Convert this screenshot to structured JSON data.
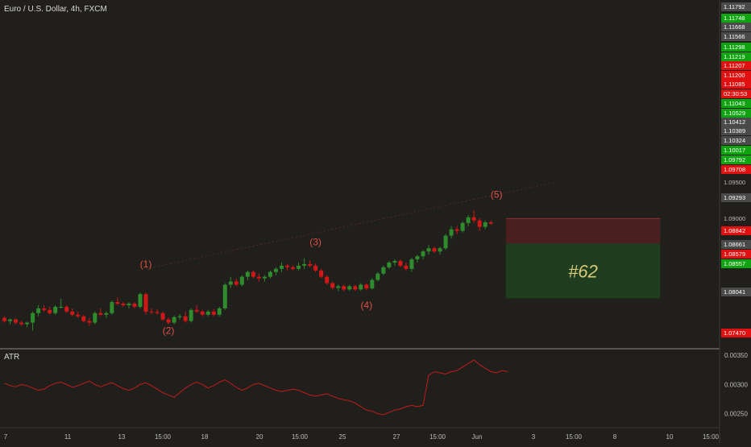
{
  "header": {
    "symbol_label": "Euro / U.S. Dollar, 4h, FXCM"
  },
  "colors": {
    "background": "#211f1b",
    "up": "#2e8b2e",
    "down": "#d01818",
    "axis_text": "#d8d8d8",
    "wave_label": "#e0504a",
    "atr_line": "#c01c1c",
    "target_zone": "#1f3e1f",
    "stop_zone": "#4a1f1f",
    "setup_label": "#d9c97a",
    "separator": "#8a8a8a"
  },
  "chart_data": [
    {
      "type": "candlestick",
      "title": "Euro / U.S. Dollar, 4h, FXCM",
      "ylim": [
        1.0715,
        1.1815
      ],
      "price_scale": [
        "1.11792",
        "1.11748",
        "1.11668",
        "1.11566",
        "1.11298",
        "1.11219",
        "1.11207",
        "1.11200",
        "1.11085",
        "02:30:53",
        "1.11043",
        "1.10529",
        "1.10412",
        "1.10389",
        "1.10324",
        "1.10017",
        "1.09792",
        "1.09708",
        "1.09500",
        "1.09293",
        "1.09000",
        "1.08842",
        "1.08661",
        "1.08579",
        "1.08557",
        "1.08041",
        "1.07470"
      ],
      "x_ticks": [
        "7",
        "11",
        "13",
        "15:00",
        "18",
        "20",
        "15:00",
        "25",
        "27",
        "15:00",
        "Jun",
        "3",
        "15:00",
        "8",
        "10",
        "15:00"
      ],
      "wave_labels": [
        {
          "text": "(1)",
          "x": 25,
          "y": 1.097
        },
        {
          "text": "(2)",
          "x": 29,
          "y": 1.076
        },
        {
          "text": "(3)",
          "x": 55,
          "y": 1.104
        },
        {
          "text": "(4)",
          "x": 64,
          "y": 1.084
        },
        {
          "text": "(5)",
          "x": 87,
          "y": 1.119
        }
      ],
      "trade_setup": {
        "label": "#62",
        "entry": 1.1124,
        "stop_top": 1.1124,
        "stop_bottom": 1.1045,
        "target_bottom": 1.0872,
        "x_start": 89,
        "x_end": 116
      },
      "candles": [
        [
          1.081,
          1.0815,
          1.0795,
          1.08
        ],
        [
          1.08,
          1.0808,
          1.079,
          1.0805
        ],
        [
          1.0805,
          1.0808,
          1.079,
          1.0795
        ],
        [
          1.0795,
          1.08,
          1.0785,
          1.079
        ],
        [
          1.079,
          1.0798,
          1.078,
          1.0795
        ],
        [
          1.0795,
          1.083,
          1.077,
          1.0825
        ],
        [
          1.0825,
          1.085,
          1.0815,
          1.084
        ],
        [
          1.084,
          1.085,
          1.083,
          1.0835
        ],
        [
          1.0835,
          1.0845,
          1.082,
          1.0825
        ],
        [
          1.0825,
          1.085,
          1.082,
          1.0845
        ],
        [
          1.0845,
          1.087,
          1.084,
          1.0845
        ],
        [
          1.0845,
          1.085,
          1.0825,
          1.083
        ],
        [
          1.083,
          1.084,
          1.0815,
          1.082
        ],
        [
          1.082,
          1.083,
          1.081,
          1.0815
        ],
        [
          1.0815,
          1.082,
          1.0795,
          1.08
        ],
        [
          1.08,
          1.081,
          1.0785,
          1.0795
        ],
        [
          1.0795,
          1.083,
          1.079,
          1.0825
        ],
        [
          1.0825,
          1.084,
          1.0815,
          1.082
        ],
        [
          1.082,
          1.083,
          1.081,
          1.0825
        ],
        [
          1.0825,
          1.0865,
          1.082,
          1.086
        ],
        [
          1.086,
          1.0875,
          1.085,
          1.0855
        ],
        [
          1.0855,
          1.086,
          1.0845,
          1.085
        ],
        [
          1.085,
          1.086,
          1.084,
          1.0855
        ],
        [
          1.0855,
          1.086,
          1.084,
          1.0845
        ],
        [
          1.0845,
          1.089,
          1.084,
          1.0885
        ],
        [
          1.0885,
          1.089,
          1.082,
          1.083
        ],
        [
          1.083,
          1.084,
          1.0822,
          1.0828
        ],
        [
          1.0828,
          1.0838,
          1.082,
          1.0825
        ],
        [
          1.0825,
          1.083,
          1.08,
          1.0805
        ],
        [
          1.0805,
          1.0812,
          1.079,
          1.0795
        ],
        [
          1.0795,
          1.0818,
          1.079,
          1.0812
        ],
        [
          1.0812,
          1.0822,
          1.0805,
          1.0815
        ],
        [
          1.0815,
          1.083,
          1.0795,
          1.08
        ],
        [
          1.08,
          1.084,
          1.0795,
          1.0835
        ],
        [
          1.0835,
          1.085,
          1.0825,
          1.083
        ],
        [
          1.083,
          1.0835,
          1.0815,
          1.082
        ],
        [
          1.082,
          1.0835,
          1.0815,
          1.083
        ],
        [
          1.083,
          1.0838,
          1.0815,
          1.082
        ],
        [
          1.082,
          1.0845,
          1.0815,
          1.084
        ],
        [
          1.084,
          1.092,
          1.0835,
          1.0915
        ],
        [
          1.0915,
          1.094,
          1.0905,
          1.0925
        ],
        [
          1.0925,
          1.0935,
          1.091,
          1.0915
        ],
        [
          1.0915,
          1.0945,
          1.091,
          1.094
        ],
        [
          1.094,
          1.096,
          1.093,
          1.0955
        ],
        [
          1.0955,
          1.096,
          1.0935,
          1.094
        ],
        [
          1.094,
          1.095,
          1.0925,
          1.0935
        ],
        [
          1.0935,
          1.0945,
          1.0925,
          1.094
        ],
        [
          1.094,
          1.096,
          1.0935,
          1.0955
        ],
        [
          1.0955,
          1.097,
          1.0945,
          1.0965
        ],
        [
          1.0965,
          1.0985,
          1.0955,
          1.0975
        ],
        [
          1.0975,
          1.098,
          1.096,
          1.097
        ],
        [
          1.097,
          1.0975,
          1.096,
          1.0965
        ],
        [
          1.0965,
          1.0985,
          1.096,
          1.0975
        ],
        [
          1.0975,
          1.0998,
          1.0965,
          1.098
        ],
        [
          1.098,
          1.0992,
          1.097,
          1.0975
        ],
        [
          1.0975,
          1.0982,
          1.0955,
          1.096
        ],
        [
          1.096,
          1.0965,
          1.0935,
          1.094
        ],
        [
          1.094,
          1.0945,
          1.0915,
          1.092
        ],
        [
          1.092,
          1.0925,
          1.09,
          1.0905
        ],
        [
          1.0905,
          1.0915,
          1.0895,
          1.091
        ],
        [
          1.091,
          1.0915,
          1.0895,
          1.09
        ],
        [
          1.09,
          1.0915,
          1.0895,
          1.091
        ],
        [
          1.091,
          1.0915,
          1.0895,
          1.09
        ],
        [
          1.09,
          1.092,
          1.0895,
          1.0915
        ],
        [
          1.0915,
          1.092,
          1.0898,
          1.0903
        ],
        [
          1.0903,
          1.0935,
          1.09,
          1.093
        ],
        [
          1.093,
          1.0955,
          1.0925,
          1.095
        ],
        [
          1.095,
          1.0975,
          1.0945,
          1.097
        ],
        [
          1.097,
          1.099,
          1.0965,
          1.0985
        ],
        [
          1.0985,
          1.0995,
          1.0975,
          1.099
        ],
        [
          1.099,
          1.0995,
          1.097,
          1.0975
        ],
        [
          1.0975,
          1.0985,
          1.096,
          1.0965
        ],
        [
          1.0965,
          1.1,
          1.0955,
          1.0995
        ],
        [
          1.0995,
          1.101,
          1.0985,
          1.1005
        ],
        [
          1.1005,
          1.1025,
          1.0995,
          1.102
        ],
        [
          1.102,
          1.104,
          1.101,
          1.103
        ],
        [
          1.103,
          1.1035,
          1.1015,
          1.102
        ],
        [
          1.102,
          1.1035,
          1.101,
          1.103
        ],
        [
          1.103,
          1.1075,
          1.1025,
          1.107
        ],
        [
          1.107,
          1.11,
          1.106,
          1.109
        ],
        [
          1.109,
          1.11,
          1.1075,
          1.1085
        ],
        [
          1.1085,
          1.1115,
          1.108,
          1.111
        ],
        [
          1.111,
          1.1135,
          1.11,
          1.1128
        ],
        [
          1.1128,
          1.115,
          1.111,
          1.1118
        ],
        [
          1.1118,
          1.1125,
          1.1085,
          1.1098
        ],
        [
          1.1098,
          1.1118,
          1.109,
          1.1112
        ],
        [
          1.1112,
          1.1118,
          1.1105,
          1.1108
        ]
      ]
    },
    {
      "type": "line",
      "title": "ATR",
      "ylim": [
        0.0023,
        0.0036
      ],
      "y_ticks": [
        "0.00350",
        "0.00300",
        "0.00250"
      ],
      "values": [
        0.00302,
        0.00298,
        0.00296,
        0.003,
        0.00298,
        0.00294,
        0.0029,
        0.00292,
        0.00298,
        0.00302,
        0.00304,
        0.003,
        0.00295,
        0.00298,
        0.00302,
        0.00306,
        0.003,
        0.00296,
        0.003,
        0.00303,
        0.00298,
        0.00293,
        0.0029,
        0.00294,
        0.003,
        0.00303,
        0.00298,
        0.00292,
        0.00286,
        0.00282,
        0.00278,
        0.00286,
        0.00294,
        0.003,
        0.00304,
        0.003,
        0.00294,
        0.00298,
        0.00304,
        0.00308,
        0.00302,
        0.00295,
        0.0029,
        0.00294,
        0.003,
        0.00302,
        0.00298,
        0.00294,
        0.0029,
        0.00288,
        0.0029,
        0.00292,
        0.0029,
        0.00286,
        0.00282,
        0.0028,
        0.00282,
        0.00284,
        0.0028,
        0.00276,
        0.00274,
        0.00272,
        0.00268,
        0.00262,
        0.00256,
        0.00254,
        0.0025,
        0.00248,
        0.00252,
        0.00256,
        0.00258,
        0.00262,
        0.00264,
        0.00262,
        0.00264,
        0.00316,
        0.00322,
        0.0032,
        0.00318,
        0.00322,
        0.00324,
        0.0033,
        0.00336,
        0.00342,
        0.00334,
        0.00328,
        0.00322,
        0.0032,
        0.00324,
        0.00322
      ]
    }
  ]
}
